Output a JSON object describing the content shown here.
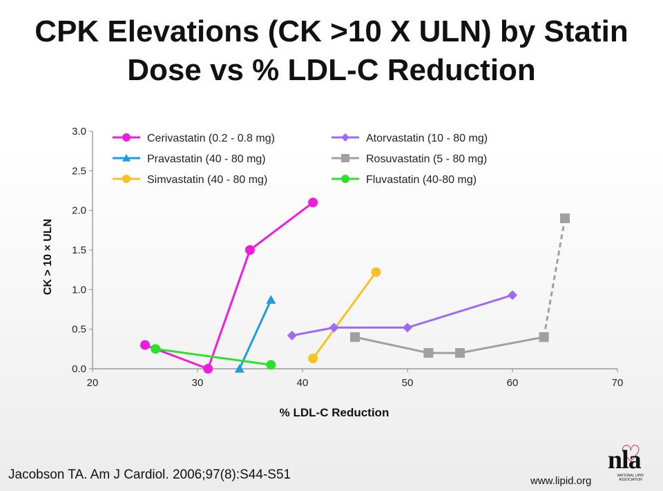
{
  "slide": {
    "title_line1": "CPK Elevations (CK >10 X ULN) by Statin",
    "title_line2": "Dose vs % LDL-C Reduction",
    "citation": "Jacobson TA. Am J Cardiol. 2006;97(8):S44-S51",
    "website": "www.lipid.org",
    "logo_text": "nla",
    "logo_subtext": "NATIONAL LIPID ASSOCIATION"
  },
  "chart_data": {
    "type": "line",
    "xlabel": "% LDL-C Reduction",
    "ylabel": "CK > 10 × ULN",
    "xlim": [
      20,
      70
    ],
    "ylim": [
      0,
      3
    ],
    "xticks": [
      20,
      30,
      40,
      50,
      60,
      70
    ],
    "yticks": [
      "0.0",
      "0.5",
      "1.0",
      "1.5",
      "2.0",
      "2.5",
      "3.0"
    ],
    "grid": false,
    "legend_position": "top-left",
    "series": [
      {
        "name": "Cerivastatin (0.2 - 0.8 mg)",
        "color": "#ee1cdc",
        "marker": "circle",
        "x": [
          25,
          31,
          35,
          41
        ],
        "y": [
          0.3,
          0.0,
          1.5,
          2.1
        ]
      },
      {
        "name": "Pravastatin (40 - 80 mg)",
        "color": "#1f9be0",
        "marker": "triangle",
        "x": [
          34,
          37
        ],
        "y": [
          0.0,
          0.87
        ]
      },
      {
        "name": "Simvastatin (40 - 80 mg)",
        "color": "#f5c323",
        "marker": "circle",
        "x": [
          41,
          47
        ],
        "y": [
          0.13,
          1.22
        ]
      },
      {
        "name": "Atorvastatin (10 - 80 mg)",
        "color": "#9b6cf2",
        "marker": "diamond",
        "x": [
          39,
          43,
          50,
          60
        ],
        "y": [
          0.42,
          0.52,
          0.52,
          0.93
        ]
      },
      {
        "name": "Rosuvastatin (5 - 80 mg)",
        "color": "#a0a0a0",
        "marker": "square",
        "x": [
          45,
          52,
          55,
          63
        ],
        "y": [
          0.4,
          0.2,
          0.2,
          0.4
        ]
      },
      {
        "name": "Rosuvastatin 80 mg (dashed)",
        "color": "#a0a0a0",
        "marker": "square",
        "dashed": true,
        "legend": false,
        "x": [
          63,
          65
        ],
        "y": [
          0.4,
          1.9
        ]
      },
      {
        "name": "Fluvastatin (40-80 mg)",
        "color": "#2ee02e",
        "marker": "circle",
        "x": [
          26,
          37
        ],
        "y": [
          0.25,
          0.05
        ]
      }
    ]
  }
}
